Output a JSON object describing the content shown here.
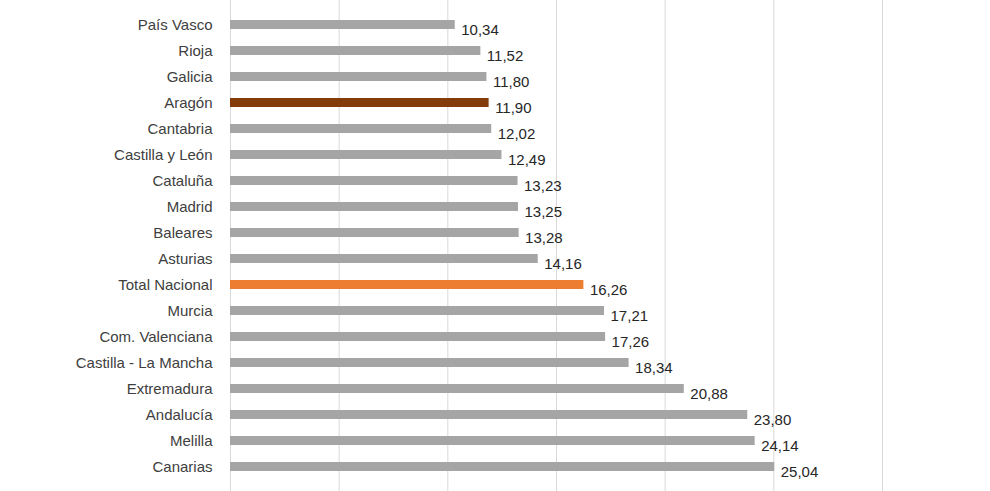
{
  "chart_data": {
    "type": "bar",
    "orientation": "horizontal",
    "categories": [
      "País Vasco",
      "Rioja",
      "Galicia",
      "Aragón",
      "Cantabria",
      "Castilla y León",
      "Cataluña",
      "Madrid",
      "Baleares",
      "Asturias",
      "Total Nacional",
      "Murcia",
      "Com. Valenciana",
      "Castilla - La Mancha",
      "Extremadura",
      "Andalucía",
      "Melilla",
      "Canarias"
    ],
    "values": [
      10.34,
      11.52,
      11.8,
      11.9,
      12.02,
      12.49,
      13.23,
      13.25,
      13.28,
      14.16,
      16.26,
      17.21,
      17.26,
      18.34,
      20.88,
      23.8,
      24.14,
      25.04
    ],
    "value_labels": [
      "10,34",
      "11,52",
      "11,80",
      "11,90",
      "12,02",
      "12,49",
      "13,23",
      "13,25",
      "13,28",
      "14,16",
      "16,26",
      "17,21",
      "17,26",
      "18,34",
      "20,88",
      "23,80",
      "24,14",
      "25,04"
    ],
    "colors": [
      "#a5a5a5",
      "#a5a5a5",
      "#a5a5a5",
      "#843c0c",
      "#a5a5a5",
      "#a5a5a5",
      "#a5a5a5",
      "#a5a5a5",
      "#a5a5a5",
      "#a5a5a5",
      "#ed7d31",
      "#a5a5a5",
      "#a5a5a5",
      "#a5a5a5",
      "#a5a5a5",
      "#a5a5a5",
      "#a5a5a5",
      "#a5a5a5"
    ],
    "xlim": [
      0,
      30
    ],
    "xticks": [
      0,
      5,
      10,
      15,
      20,
      25,
      30
    ],
    "grid": true,
    "data_labels": true,
    "tick_labels": "y"
  }
}
